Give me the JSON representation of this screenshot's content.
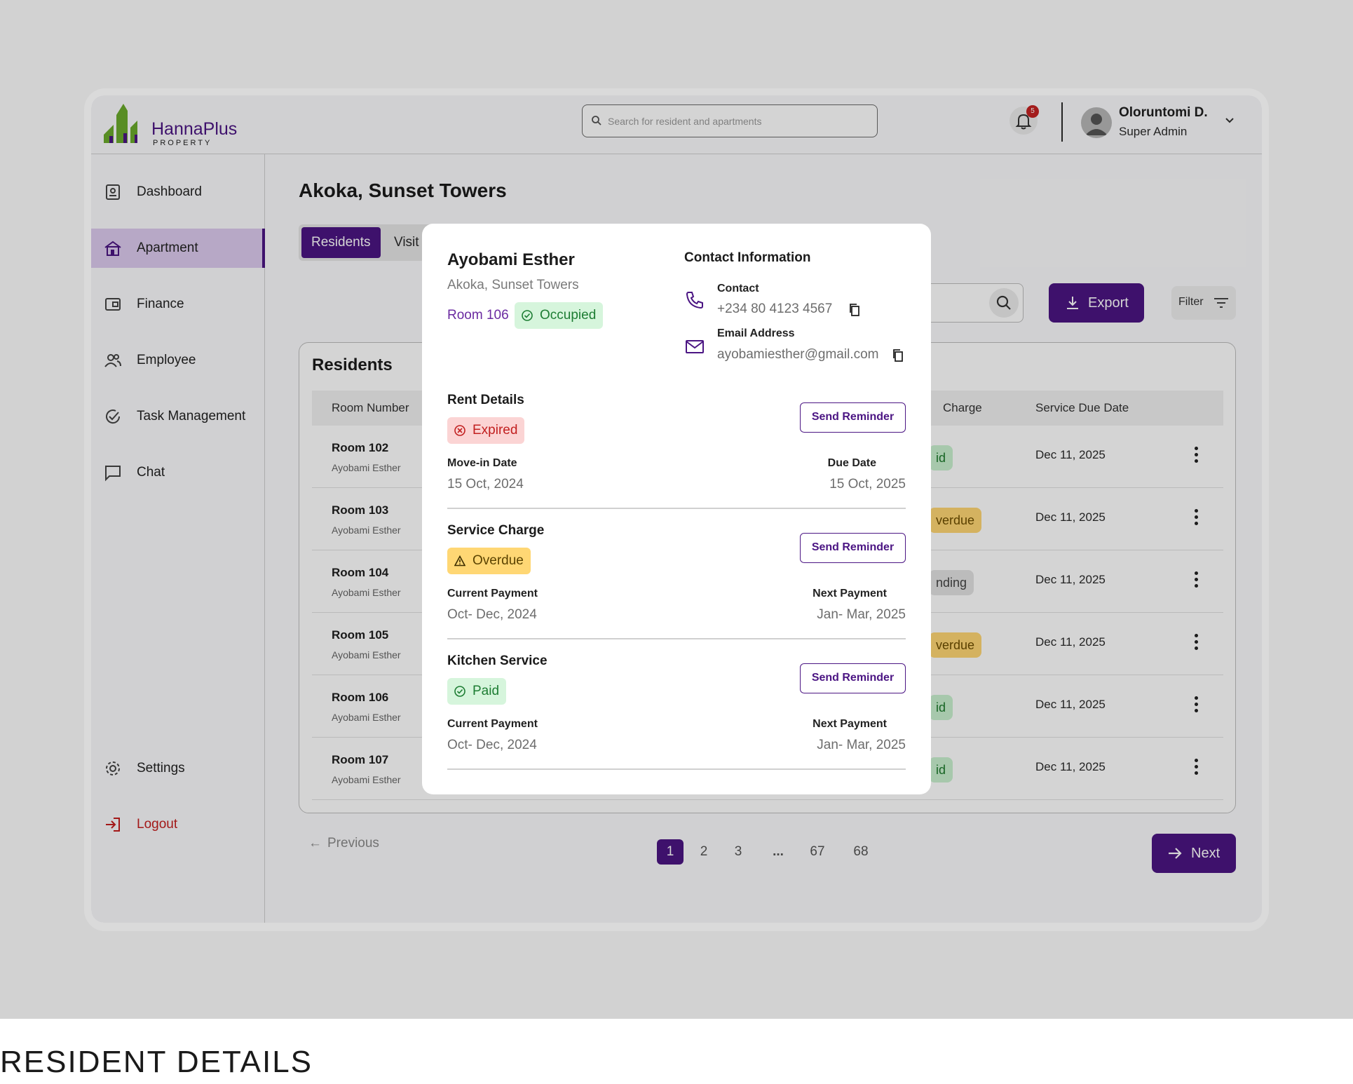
{
  "caption": "RESIDENT DETAILS",
  "brand": {
    "name": "HannaPlus",
    "sub": "PROPERTY",
    "colors": {
      "primary": "#4b1583",
      "logo_green": "#6aaa2c"
    }
  },
  "header": {
    "search_placeholder": "Search for resident and apartments",
    "notifications_count": "5",
    "user_name": "Oloruntomi D.",
    "user_role": "Super Admin"
  },
  "sidebar": {
    "items": [
      {
        "label": "Dashboard",
        "icon": "dashboard-icon"
      },
      {
        "label": "Apartment",
        "icon": "building-icon",
        "active": true
      },
      {
        "label": "Finance",
        "icon": "wallet-icon"
      },
      {
        "label": "Employee",
        "icon": "people-icon"
      },
      {
        "label": "Task Management",
        "icon": "task-check-icon"
      },
      {
        "label": "Chat",
        "icon": "chat-icon"
      }
    ],
    "settings": "Settings",
    "logout": "Logout"
  },
  "page": {
    "title": "Akoka, Sunset Towers",
    "tabs": [
      "Residents",
      "Visit"
    ],
    "export_label": "Export",
    "filter_label": "Filter"
  },
  "residents": {
    "title": "Residents",
    "columns": [
      "Room Number",
      "Charge",
      "Service Due Date"
    ],
    "rows": [
      {
        "room": "Room 102",
        "person": "Ayobami Esther",
        "status": "id",
        "kind": "paid",
        "due": "Dec 11, 2025"
      },
      {
        "room": "Room 103",
        "person": "Ayobami Esther",
        "status": "verdue",
        "kind": "overdue",
        "due": "Dec 11, 2025"
      },
      {
        "room": "Room 104",
        "person": "Ayobami Esther",
        "status": "nding",
        "kind": "pending",
        "due": "Dec 11, 2025"
      },
      {
        "room": "Room 105",
        "person": "Ayobami Esther",
        "status": "verdue",
        "kind": "overdue",
        "due": "Dec 11, 2025"
      },
      {
        "room": "Room 106",
        "person": "Ayobami Esther",
        "status": "id",
        "kind": "paid",
        "due": "Dec 11, 2025"
      },
      {
        "room": "Room 107",
        "person": "Ayobami Esther",
        "status": "id",
        "kind": "paid",
        "due": "Dec 11, 2025"
      }
    ]
  },
  "pagination": {
    "previous": "Previous",
    "next": "Next",
    "pages": [
      "1",
      "2",
      "3",
      "...",
      "67",
      "68"
    ],
    "current": "1"
  },
  "modal": {
    "name": "Ayobami Esther",
    "location": "Akoka, Sunset Towers",
    "room": "Room 106",
    "occupancy": "Occupied",
    "contact_header": "Contact Information",
    "contact_label": "Contact",
    "phone": "+234 80 4123 4567",
    "email_label": "Email Address",
    "email": "ayobamiesther@gmail.com",
    "send_reminder": "Send Reminder",
    "rent": {
      "title": "Rent Details",
      "status": "Expired",
      "left_label": "Move-in Date",
      "left_value": "15 Oct, 2024",
      "right_label": "Due Date",
      "right_value": "15 Oct, 2025"
    },
    "service": {
      "title": "Service Charge",
      "status": "Overdue",
      "left_label": "Current Payment",
      "left_value": "Oct- Dec, 2024",
      "right_label": "Next Payment",
      "right_value": "Jan- Mar, 2025"
    },
    "kitchen": {
      "title": "Kitchen Service",
      "status": "Paid",
      "left_label": "Current Payment",
      "left_value": "Oct- Dec, 2024",
      "right_label": "Next Payment",
      "right_value": "Jan- Mar, 2025"
    }
  }
}
